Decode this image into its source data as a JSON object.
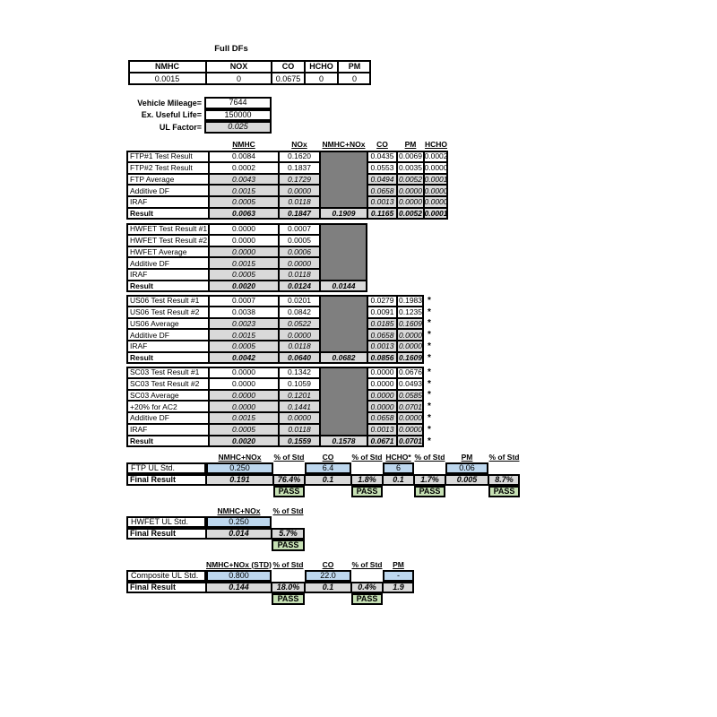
{
  "full_dfs": {
    "title": "Full DFs",
    "headers": [
      "NMHC",
      "NOX",
      "CO",
      "HCHO",
      "PM"
    ],
    "values": [
      "0.0015",
      "0",
      "0.0675",
      "0",
      "0"
    ]
  },
  "vehicle_info": [
    {
      "label": "Vehicle Mileage=",
      "value": "7644",
      "calc": false
    },
    {
      "label": "Ex. Useful Life=",
      "value": "150000",
      "calc": false
    },
    {
      "label": "UL Factor=",
      "value": "0.025",
      "calc": true
    }
  ],
  "main_columns": [
    "NMHC",
    "NOx",
    "NMHC+NOx",
    "CO",
    "PM",
    "HCHO"
  ],
  "footnote_marker": "*",
  "test_sections": [
    {
      "name": "FTP",
      "star": false,
      "rows": [
        {
          "label": "FTP#1 Test Result",
          "type": "input",
          "nmhc": "0.0084",
          "nox": "0.1620",
          "combo": null,
          "co": "0.0435",
          "pm": "0.0069",
          "hcho": "0.0002"
        },
        {
          "label": "FTP#2 Test Result",
          "type": "input",
          "nmhc": "0.0002",
          "nox": "0.1837",
          "combo": null,
          "co": "0.0553",
          "pm": "0.0035",
          "hcho": "0.0000"
        },
        {
          "label": "FTP Average",
          "type": "calc",
          "nmhc": "0.0043",
          "nox": "0.1729",
          "combo": null,
          "co": "0.0494",
          "pm": "0.0052",
          "hcho": "0.0001"
        },
        {
          "label": "Additive DF",
          "type": "calc",
          "nmhc": "0.0015",
          "nox": "0.0000",
          "combo": null,
          "co": "0.0658",
          "pm": "0.0000",
          "hcho": "0.0000"
        },
        {
          "label": "IRAF",
          "type": "calc",
          "nmhc": "0.0005",
          "nox": "0.0118",
          "combo": null,
          "co": "0.0013",
          "pm": "0.0000",
          "hcho": "0.0000"
        },
        {
          "label": "Result",
          "type": "result",
          "nmhc": "0.0063",
          "nox": "0.1847",
          "combo": "0.1909",
          "co": "0.1165",
          "pm": "0.0052",
          "hcho": "0.0001"
        }
      ]
    },
    {
      "name": "HWFET",
      "star": false,
      "rows": [
        {
          "label": "HWFET Test Result #1",
          "type": "input",
          "nmhc": "0.0000",
          "nox": "0.0007",
          "combo": null
        },
        {
          "label": "HWFET Test Result #2",
          "type": "input",
          "nmhc": "0.0000",
          "nox": "0.0005",
          "combo": null
        },
        {
          "label": "HWFET Average",
          "type": "calc",
          "nmhc": "0.0000",
          "nox": "0.0006",
          "combo": null
        },
        {
          "label": "Additive DF",
          "type": "calc",
          "nmhc": "0.0015",
          "nox": "0.0000",
          "combo": null
        },
        {
          "label": "IRAF",
          "type": "calc",
          "nmhc": "0.0005",
          "nox": "0.0118",
          "combo": null
        },
        {
          "label": "Result",
          "type": "result",
          "nmhc": "0.0020",
          "nox": "0.0124",
          "combo": "0.0144"
        }
      ]
    },
    {
      "name": "US06",
      "star": true,
      "rows": [
        {
          "label": "US06 Test Result #1",
          "type": "input",
          "nmhc": "0.0007",
          "nox": "0.0201",
          "combo": null,
          "co": "0.0279",
          "pm": "0.1983"
        },
        {
          "label": "US06 Test Result #2",
          "type": "input",
          "nmhc": "0.0038",
          "nox": "0.0842",
          "combo": null,
          "co": "0.0091",
          "pm": "0.1235"
        },
        {
          "label": "US06 Average",
          "type": "calc",
          "nmhc": "0.0023",
          "nox": "0.0522",
          "combo": null,
          "co": "0.0185",
          "pm": "0.1609"
        },
        {
          "label": "Additive DF",
          "type": "calc",
          "nmhc": "0.0015",
          "nox": "0.0000",
          "combo": null,
          "co": "0.0658",
          "pm": "0.0000"
        },
        {
          "label": "IRAF",
          "type": "calc",
          "nmhc": "0.0005",
          "nox": "0.0118",
          "combo": null,
          "co": "0.0013",
          "pm": "0.0000"
        },
        {
          "label": "Result",
          "type": "result",
          "nmhc": "0.0042",
          "nox": "0.0640",
          "combo": "0.0682",
          "co": "0.0856",
          "pm": "0.1609"
        }
      ]
    },
    {
      "name": "SC03",
      "star": true,
      "rows": [
        {
          "label": "SC03 Test Result #1",
          "type": "input",
          "nmhc": "0.0000",
          "nox": "0.1342",
          "combo": null,
          "co": "0.0000",
          "pm": "0.0676"
        },
        {
          "label": "SC03 Test Result #2",
          "type": "input",
          "nmhc": "0.0000",
          "nox": "0.1059",
          "combo": null,
          "co": "0.0000",
          "pm": "0.0493"
        },
        {
          "label": "SC03 Average",
          "type": "calc",
          "nmhc": "0.0000",
          "nox": "0.1201",
          "combo": null,
          "co": "0.0000",
          "pm": "0.0585"
        },
        {
          "label": "+20% for AC2",
          "type": "calc",
          "nmhc": "0.0000",
          "nox": "0.1441",
          "combo": null,
          "co": "0.0000",
          "pm": "0.0701"
        },
        {
          "label": "Additive DF",
          "type": "calc",
          "nmhc": "0.0015",
          "nox": "0.0000",
          "combo": null,
          "co": "0.0658",
          "pm": "0.0000"
        },
        {
          "label": "IRAF",
          "type": "calc",
          "nmhc": "0.0005",
          "nox": "0.0118",
          "combo": null,
          "co": "0.0013",
          "pm": "0.0000"
        },
        {
          "label": "Result",
          "type": "result",
          "nmhc": "0.0020",
          "nox": "0.1559",
          "combo": "0.1578",
          "co": "0.0671",
          "pm": "0.0701"
        }
      ]
    }
  ],
  "standards_sections": [
    {
      "name": "FTP UL",
      "headers": [
        "NMHC+NOx",
        "% of Std",
        "CO",
        "% of Std",
        "HCHO*",
        "% of Std",
        "PM",
        "% of Std"
      ],
      "std_label": "FTP UL Std.",
      "std_values": [
        "0.250",
        "6.4",
        "6",
        "0.06"
      ],
      "final_label": "Final Result",
      "final_values": [
        "0.191",
        "76.4%",
        "0.1",
        "1.8%",
        "0.1",
        "1.7%",
        "0.005",
        "8.7%"
      ],
      "pass_values": [
        "PASS",
        "PASS",
        "PASS",
        "PASS"
      ]
    },
    {
      "name": "HWFET UL",
      "headers": [
        "NMHC+NOx",
        "% of Std"
      ],
      "std_label": "HWFET UL Std.",
      "std_values": [
        "0.250"
      ],
      "final_label": "Final Result",
      "final_values": [
        "0.014",
        "5.7%"
      ],
      "pass_values": [
        "PASS"
      ]
    },
    {
      "name": "Composite UL",
      "headers": [
        "NMHC+NOx (STD)",
        "% of Std",
        "CO",
        "% of Std",
        "PM"
      ],
      "std_label": "Composite UL Std.",
      "std_values": [
        "0.800",
        "22.0",
        "-"
      ],
      "final_label": "Final Result",
      "final_values": [
        "0.144",
        "18.0%",
        "0.1",
        "0.4%",
        "1.9"
      ],
      "pass_values": [
        "PASS",
        "PASS"
      ]
    }
  ],
  "colors": {
    "standard_fill": "#BDD7EE",
    "pass_fill": "#C6E0B4",
    "calculated_fill": "#D9D9D9",
    "blocked_fill": "#7F7F7F"
  }
}
